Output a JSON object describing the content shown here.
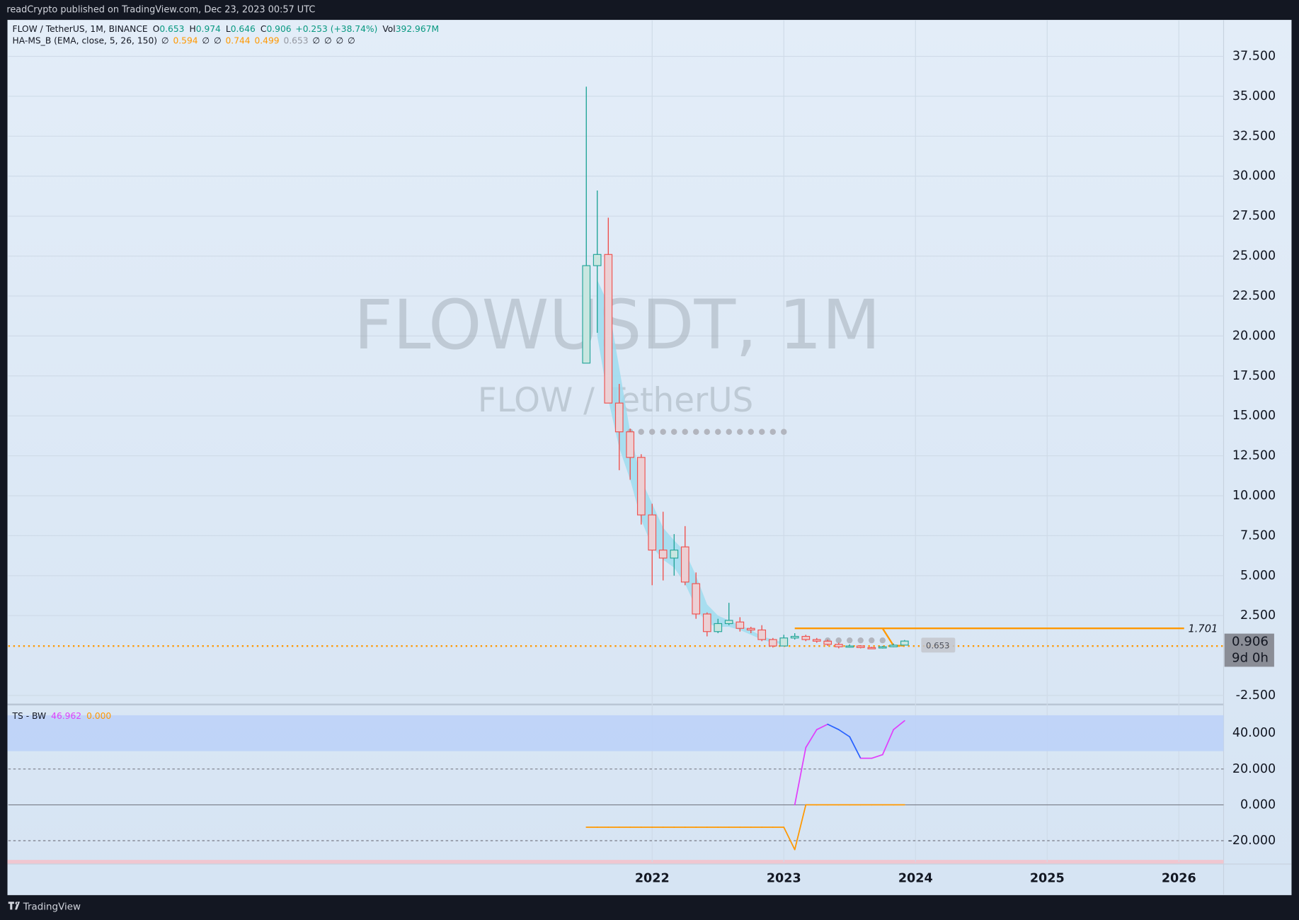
{
  "header": {
    "text": "readCrypto published on TradingView.com, Dec 23, 2023 00:57 UTC"
  },
  "legend": {
    "symbol": "FLOW / TetherUS, 1M, BINANCE",
    "items": [
      {
        "label": "O",
        "value": "0.653"
      },
      {
        "label": "H",
        "value": "0.974"
      },
      {
        "label": "L",
        "value": "0.646"
      },
      {
        "label": "C",
        "value": "0.906"
      }
    ],
    "change": "+0.253 (+38.74%)",
    "volume_label": "Vol",
    "volume": "392.967M",
    "color": "#089981",
    "indicator": "HA-MS_B (EMA, close, 5, 26, 150)",
    "indicator_values": [
      {
        "text": "∅",
        "color": "#131722"
      },
      {
        "text": "0.594",
        "color": "#ff9800"
      },
      {
        "text": "∅",
        "color": "#131722"
      },
      {
        "text": "∅",
        "color": "#131722"
      },
      {
        "text": "0.744",
        "color": "#ff9800"
      },
      {
        "text": "0.499",
        "color": "#ff9800"
      },
      {
        "text": "0.653",
        "color": "#9598a1"
      },
      {
        "text": "∅",
        "color": "#131722"
      },
      {
        "text": "∅",
        "color": "#131722"
      },
      {
        "text": "∅",
        "color": "#131722"
      },
      {
        "text": "∅",
        "color": "#131722"
      }
    ]
  },
  "chart_data": [
    {
      "type": "candlestick",
      "watermark": "FLOWUSDT, 1M",
      "subtitle": "FLOW / TetherUS",
      "x": [
        2021.5,
        2021.583,
        2021.667,
        2021.75,
        2021.833,
        2021.917,
        2022,
        2022.083,
        2022.167,
        2022.25,
        2022.333,
        2022.417,
        2022.5,
        2022.583,
        2022.667,
        2022.75,
        2022.833,
        2022.917,
        2023,
        2023.083,
        2023.167,
        2023.25,
        2023.333,
        2023.417,
        2023.5,
        2023.583,
        2023.667,
        2023.75,
        2023.833,
        2023.917
      ],
      "open": [
        18.3,
        24.4,
        25.1,
        15.8,
        14.0,
        12.4,
        8.8,
        6.6,
        6.1,
        6.8,
        4.5,
        2.6,
        1.5,
        2.0,
        2.1,
        1.7,
        1.6,
        1.0,
        0.6,
        1.1,
        1.2,
        1.0,
        0.9,
        0.7,
        0.55,
        0.6,
        0.5,
        0.47,
        0.55,
        0.653
      ],
      "high": [
        35.6,
        29.1,
        27.4,
        17.0,
        14.2,
        12.6,
        9.5,
        9.0,
        7.6,
        8.1,
        5.2,
        2.7,
        2.3,
        3.3,
        2.4,
        1.8,
        1.9,
        1.1,
        1.3,
        1.4,
        1.3,
        1.1,
        1.0,
        0.8,
        0.7,
        0.65,
        0.55,
        0.6,
        0.75,
        0.974
      ],
      "low": [
        18.3,
        20.2,
        15.8,
        11.6,
        11.0,
        8.2,
        4.4,
        4.7,
        5.0,
        4.4,
        2.3,
        1.2,
        1.4,
        1.9,
        1.5,
        1.4,
        0.9,
        0.5,
        0.6,
        1.0,
        0.9,
        0.8,
        0.6,
        0.45,
        0.5,
        0.45,
        0.42,
        0.44,
        0.52,
        0.646
      ],
      "close": [
        24.4,
        25.1,
        15.8,
        14.0,
        12.4,
        8.8,
        6.6,
        6.1,
        6.6,
        4.6,
        2.6,
        1.5,
        2.0,
        2.2,
        1.7,
        1.6,
        1.0,
        0.6,
        1.1,
        1.2,
        1.0,
        0.9,
        0.7,
        0.55,
        0.6,
        0.5,
        0.47,
        0.55,
        0.65,
        0.906
      ],
      "up_color": "#26a69a",
      "down_color": "#ef5350",
      "xlim": [
        2017.11,
        2026.34
      ],
      "xticks": [
        2022,
        2023,
        2024,
        2025,
        2026
      ],
      "ylim": [
        -2.96,
        39.78
      ],
      "yticks": [
        {
          "value": 37.5,
          "label": "37.500"
        },
        {
          "value": 35,
          "label": "35.000"
        },
        {
          "value": 32.5,
          "label": "32.500"
        },
        {
          "value": 30,
          "label": "30.000"
        },
        {
          "value": 27.5,
          "label": "27.500"
        },
        {
          "value": 25,
          "label": "25.000"
        },
        {
          "value": 22.5,
          "label": "22.500"
        },
        {
          "value": 20,
          "label": "20.000"
        },
        {
          "value": 17.5,
          "label": "17.500"
        },
        {
          "value": 15,
          "label": "15.000"
        },
        {
          "value": 12.5,
          "label": "12.500"
        },
        {
          "value": 10,
          "label": "10.000"
        },
        {
          "value": 7.5,
          "label": "7.500"
        },
        {
          "value": 5,
          "label": "5.000"
        },
        {
          "value": 2.5,
          "label": "2.500"
        },
        {
          "value": -2.5,
          "label": "-2.500"
        }
      ],
      "grid": true,
      "cloud": {
        "color": "#9fdcef",
        "upper": [
          null,
          23.5,
          22,
          18,
          14,
          11,
          9.5,
          8,
          7.2,
          6.5,
          5,
          3.2,
          2.5,
          2.2,
          1.9,
          1.6,
          1.2,
          1.0,
          0.8,
          null,
          null,
          null,
          null,
          null,
          null,
          null,
          null,
          null,
          null,
          null
        ],
        "lower": [
          null,
          20,
          16,
          13,
          11,
          8.5,
          6.8,
          6,
          5.5,
          4.5,
          3,
          2,
          1.8,
          1.8,
          1.6,
          1.3,
          1.0,
          0.8,
          0.7,
          null,
          null,
          null,
          null,
          null,
          null,
          null,
          null,
          null,
          null,
          null
        ]
      },
      "dot_rows": [
        {
          "value": 14,
          "xrange": [
            2021.833,
            2023.0
          ],
          "color": "#b2b5be"
        },
        {
          "value": 0.95,
          "xrange": [
            2023.333,
            2023.75
          ],
          "color": "#b2b5be"
        }
      ],
      "levels": [
        {
          "value": 1.701,
          "xrange": [
            2023.083,
            2026.04
          ],
          "color": "#ff9800"
        }
      ],
      "stop_line": {
        "x": [
          2023.75,
          2023.833,
          2023.917
        ],
        "values": [
          1.701,
          0.62,
          0.62
        ],
        "color": "#ff9800"
      },
      "dotted_level": {
        "value": 0.594,
        "color": "#ff9800"
      },
      "last_price": {
        "value": 0.906,
        "countdown": "9d 0h",
        "color": "#8a8d96"
      },
      "open_price": {
        "value": 0.653,
        "color": "#c3c6cd"
      }
    },
    {
      "type": "line",
      "title": "TS - BW",
      "x": [
        2021.5,
        2021.583,
        2021.667,
        2021.75,
        2021.833,
        2021.917,
        2022,
        2022.083,
        2022.167,
        2022.25,
        2022.333,
        2022.417,
        2022.5,
        2022.583,
        2022.667,
        2022.75,
        2022.833,
        2022.917,
        2023,
        2023.083,
        2023.167,
        2023.25,
        2023.333,
        2023.417,
        2023.5,
        2023.583,
        2023.667,
        2023.75,
        2023.833,
        2023.917
      ],
      "series": [
        {
          "color": "#e040fb",
          "down_color": "#2962ff",
          "values": [
            null,
            null,
            null,
            null,
            null,
            null,
            null,
            null,
            null,
            null,
            null,
            null,
            null,
            null,
            null,
            null,
            null,
            null,
            null,
            0,
            32,
            42,
            45,
            42,
            38,
            26,
            26,
            28,
            42,
            46.962
          ],
          "value_label": "46.962"
        },
        {
          "color": "#ff9800",
          "values": [
            -12.5,
            -12.5,
            -12.5,
            -12.5,
            -12.5,
            -12.5,
            -12.5,
            -12.5,
            -12.5,
            -12.5,
            -12.5,
            -12.5,
            -12.5,
            -12.5,
            -12.5,
            -12.5,
            -12.5,
            -12.5,
            -12.5,
            -25,
            0,
            0,
            0,
            0,
            0,
            0,
            0,
            0,
            0,
            0
          ],
          "value_label": "0.000"
        }
      ],
      "xlim": [
        2017.11,
        2026.34
      ],
      "ylim": [
        -31.9,
        55.1
      ],
      "yticks": [
        {
          "value": 40,
          "label": "40.000"
        },
        {
          "value": 20,
          "label": "20.000"
        },
        {
          "value": 0,
          "label": "0.000"
        },
        {
          "value": -20,
          "label": "-20.000"
        }
      ],
      "band": [
        30,
        50
      ],
      "band_color": "#bcd1f8"
    }
  ],
  "footer": {
    "brand": "TradingView"
  }
}
